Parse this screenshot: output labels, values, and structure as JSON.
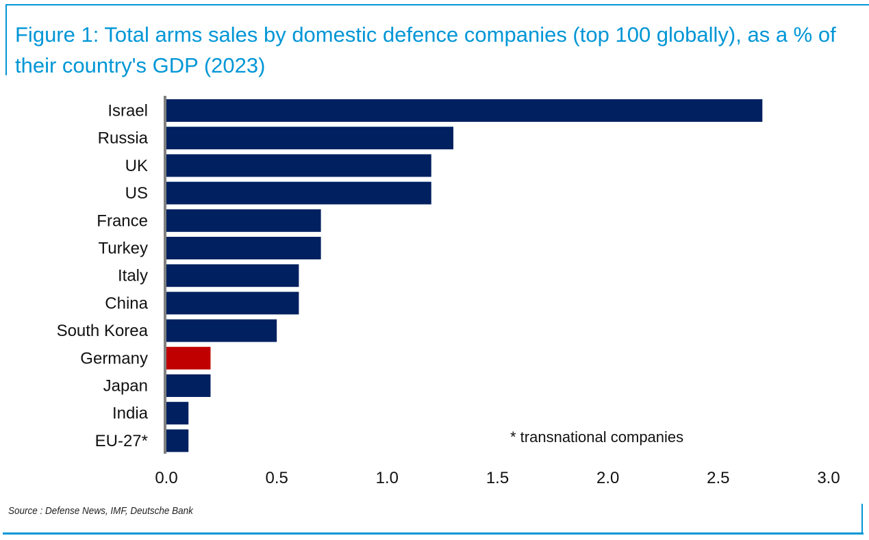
{
  "chart_data": {
    "type": "bar",
    "orientation": "horizontal",
    "title": "Figure 1: Total arms sales by domestic defence companies (top 100 globally), as a % of their country's GDP (2023)",
    "categories": [
      "Israel",
      "Russia",
      "UK",
      "US",
      "France",
      "Turkey",
      "Italy",
      "China",
      "South Korea",
      "Germany",
      "Japan",
      "India",
      "EU-27*"
    ],
    "values": [
      2.7,
      1.3,
      1.2,
      1.2,
      0.7,
      0.7,
      0.6,
      0.6,
      0.5,
      0.2,
      0.2,
      0.1,
      0.1
    ],
    "colors": [
      "#002060",
      "#002060",
      "#002060",
      "#002060",
      "#002060",
      "#002060",
      "#002060",
      "#002060",
      "#002060",
      "#c00000",
      "#002060",
      "#002060",
      "#002060"
    ],
    "xlim": [
      0,
      3.0
    ],
    "xticks": [
      "0.0",
      "0.5",
      "1.0",
      "1.5",
      "2.0",
      "2.5",
      "3.0"
    ],
    "xlabel": "",
    "ylabel": "",
    "grid": false,
    "annotation": "* transnational companies",
    "source": "Source : Defense News, IMF, Deutsche Bank"
  },
  "colors": {
    "accent": "#0096d6",
    "bar": "#002060",
    "highlight": "#c00000",
    "axis": "#808080"
  }
}
